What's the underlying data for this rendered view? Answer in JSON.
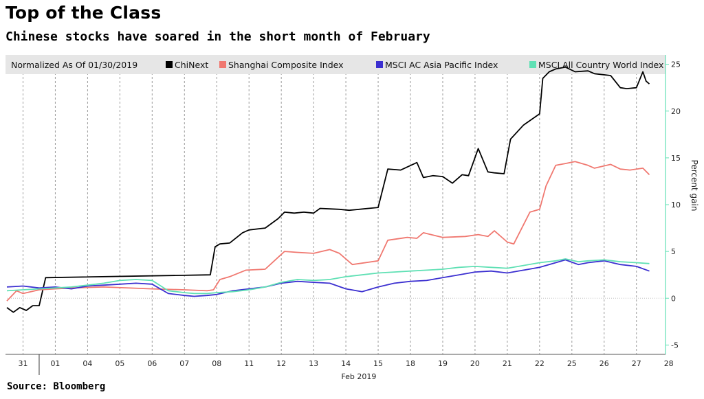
{
  "title": "Top of the Class",
  "subtitle": "Chinese stocks have soared in the short month of February",
  "source": "Source: Bloomberg",
  "chart_data": {
    "type": "line",
    "legend_note": "Normalized As Of 01/30/2019",
    "legend_placement": "top",
    "ylabel": "Percent gain",
    "ylim": [
      -6,
      26
    ],
    "yticks": [
      -5,
      0,
      5,
      10,
      15,
      20,
      25
    ],
    "xlabel": "Feb 2019",
    "xlim": [
      0,
      20.4
    ],
    "categories": [
      "31",
      "01",
      "04",
      "05",
      "06",
      "07",
      "08",
      "11",
      "12",
      "13",
      "14",
      "15",
      "18",
      "19",
      "20",
      "21",
      "22",
      "25",
      "26",
      "27",
      "28"
    ],
    "grid": "vertical dashed",
    "series": [
      {
        "name": "ChiNext",
        "color": "#000000",
        "x": [
          0,
          0.2,
          0.4,
          0.6,
          0.8,
          1.0,
          1.2,
          6.3,
          6.45,
          6.6,
          6.9,
          7.3,
          7.5,
          8.0,
          8.4,
          8.6,
          8.9,
          9.2,
          9.5,
          9.7,
          10.3,
          10.6,
          11.5,
          11.8,
          12.2,
          12.7,
          12.9,
          13.2,
          13.5,
          13.8,
          14.1,
          14.3,
          14.6,
          14.9,
          15.1,
          15.4,
          15.6,
          16.0,
          16.5,
          16.6,
          16.8,
          17.0,
          17.3,
          17.6,
          18.0,
          18.2,
          18.7,
          19.0,
          19.2,
          19.5,
          19.7,
          19.8,
          19.9
        ],
        "values": [
          -1.0,
          -1.5,
          -1.0,
          -1.3,
          -0.8,
          -0.8,
          2.2,
          2.5,
          5.5,
          5.8,
          5.9,
          7.0,
          7.3,
          7.5,
          8.5,
          9.2,
          9.1,
          9.2,
          9.1,
          9.6,
          9.5,
          9.4,
          9.7,
          13.8,
          13.7,
          14.5,
          12.9,
          13.1,
          13.0,
          12.3,
          13.2,
          13.1,
          16.0,
          13.5,
          13.4,
          13.3,
          17.0,
          18.5,
          19.7,
          23.5,
          24.2,
          24.5,
          24.7,
          24.2,
          24.3,
          24.0,
          23.8,
          22.5,
          22.4,
          22.5,
          24.2,
          23.2,
          22.9
        ]
      },
      {
        "name": "Shanghai Composite Index",
        "color": "#f07870",
        "x": [
          0,
          0.3,
          0.5,
          1.0,
          1.5,
          2.0,
          3.0,
          4.5,
          5.5,
          6.2,
          6.4,
          6.6,
          6.9,
          7.4,
          8.0,
          8.6,
          9.0,
          9.5,
          10.0,
          10.3,
          10.7,
          11.5,
          11.8,
          12.4,
          12.7,
          12.9,
          13.5,
          14.2,
          14.6,
          14.9,
          15.1,
          15.5,
          15.7,
          16.2,
          16.5,
          16.7,
          17.0,
          17.3,
          17.6,
          18.0,
          18.2,
          18.7,
          19.0,
          19.3,
          19.7,
          19.9
        ],
        "values": [
          -0.3,
          0.8,
          0.5,
          0.9,
          1.0,
          1.1,
          1.2,
          1.0,
          0.9,
          0.8,
          0.9,
          2.0,
          2.3,
          3.0,
          3.1,
          5.0,
          4.9,
          4.8,
          5.2,
          4.8,
          3.6,
          4.0,
          6.2,
          6.5,
          6.4,
          7.0,
          6.5,
          6.6,
          6.8,
          6.6,
          7.2,
          6.0,
          5.8,
          9.2,
          9.5,
          12.0,
          14.2,
          14.4,
          14.6,
          14.2,
          13.9,
          14.3,
          13.8,
          13.7,
          13.9,
          13.2
        ]
      },
      {
        "name": "MSCI AC Asia Pacific Index",
        "color": "#3b2fd0",
        "x": [
          0,
          0.5,
          1.0,
          1.5,
          2.0,
          2.5,
          3.0,
          3.5,
          4.0,
          4.5,
          5.0,
          5.5,
          5.8,
          6.2,
          6.5,
          7.0,
          7.5,
          8.0,
          8.5,
          9.0,
          9.5,
          10.0,
          10.5,
          11.0,
          11.5,
          12.0,
          12.5,
          13.0,
          13.5,
          14.0,
          14.5,
          15.0,
          15.5,
          16.0,
          16.5,
          17.0,
          17.3,
          17.7,
          18.0,
          18.5,
          19.0,
          19.5,
          19.9
        ],
        "values": [
          1.2,
          1.3,
          1.1,
          1.2,
          1.0,
          1.3,
          1.4,
          1.5,
          1.6,
          1.5,
          0.5,
          0.3,
          0.2,
          0.3,
          0.4,
          0.8,
          1.0,
          1.2,
          1.6,
          1.8,
          1.7,
          1.6,
          1.0,
          0.7,
          1.2,
          1.6,
          1.8,
          1.9,
          2.2,
          2.5,
          2.8,
          2.9,
          2.7,
          3.0,
          3.3,
          3.8,
          4.1,
          3.6,
          3.8,
          4.0,
          3.6,
          3.4,
          2.9
        ]
      },
      {
        "name": "MSCI All Country World Index",
        "color": "#5fe0b4",
        "x": [
          0,
          0.5,
          1.0,
          1.5,
          2.0,
          2.5,
          3.0,
          3.5,
          4.0,
          4.5,
          5.0,
          5.5,
          5.8,
          6.2,
          6.5,
          7.0,
          7.5,
          8.0,
          8.5,
          9.0,
          9.5,
          10.0,
          10.5,
          11.0,
          11.5,
          12.0,
          12.5,
          13.0,
          13.5,
          14.0,
          14.5,
          15.0,
          15.5,
          16.0,
          16.5,
          17.0,
          17.3,
          17.7,
          18.0,
          18.5,
          19.0,
          19.5,
          19.9
        ],
        "values": [
          0.8,
          0.9,
          1.0,
          1.1,
          1.2,
          1.4,
          1.6,
          1.9,
          2.0,
          1.9,
          0.8,
          0.6,
          0.5,
          0.5,
          0.6,
          0.7,
          0.9,
          1.2,
          1.7,
          2.0,
          1.9,
          2.0,
          2.3,
          2.5,
          2.7,
          2.8,
          2.9,
          3.0,
          3.1,
          3.3,
          3.4,
          3.3,
          3.2,
          3.5,
          3.8,
          4.0,
          4.2,
          3.9,
          4.0,
          4.1,
          3.9,
          3.8,
          3.7
        ]
      }
    ]
  }
}
